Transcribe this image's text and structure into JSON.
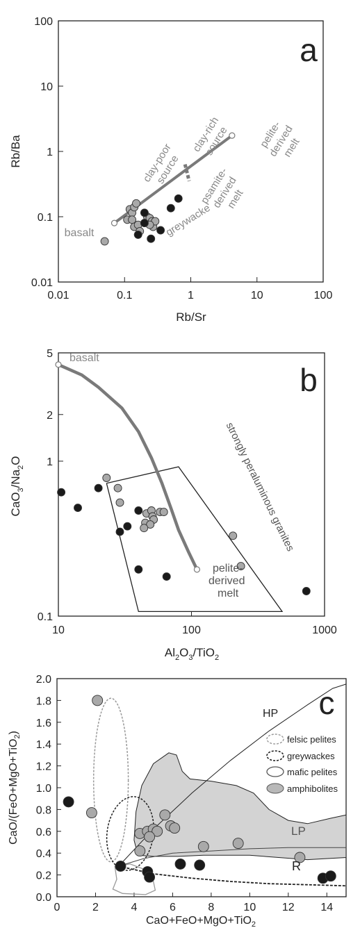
{
  "chart_data": [
    {
      "panel": "a",
      "type": "scatter",
      "xlabel": "Rb/Sr",
      "ylabel": "Rb/Ba",
      "xscale": "log",
      "yscale": "log",
      "xlim": [
        0.01,
        100
      ],
      "ylim": [
        0.01,
        100
      ],
      "xticks": [
        "0.01",
        "0.1",
        "1",
        "10",
        "100"
      ],
      "yticks": [
        "0.01",
        "0.1",
        "1",
        "10",
        "100"
      ],
      "mixing_line": {
        "points": [
          [
            0.07,
            0.08
          ],
          [
            4.2,
            1.75
          ]
        ]
      },
      "divider": {
        "x": 0.88,
        "y": 0.45
      },
      "labels": {
        "basalt": "basalt",
        "clay_poor": [
          "clay-poor",
          "source"
        ],
        "clay_rich": [
          "clay-rich",
          "source"
        ],
        "pelite": [
          "pelite-",
          "derived",
          "melt"
        ],
        "psamite": [
          "psamite-",
          "derived",
          "melt"
        ],
        "greywacke": "greywacke"
      },
      "series": [
        {
          "style": "grey",
          "points": [
            [
              0.05,
              0.042
            ],
            [
              0.11,
              0.09
            ],
            [
              0.12,
              0.13
            ],
            [
              0.13,
              0.115
            ],
            [
              0.14,
              0.14
            ],
            [
              0.15,
              0.16
            ],
            [
              0.13,
              0.09
            ],
            [
              0.14,
              0.07
            ],
            [
              0.16,
              0.075
            ],
            [
              0.17,
              0.06
            ],
            [
              0.2,
              0.08
            ],
            [
              0.22,
              0.1
            ],
            [
              0.24,
              0.095
            ],
            [
              0.26,
              0.085
            ],
            [
              0.27,
              0.07
            ],
            [
              0.29,
              0.085
            ],
            [
              0.24,
              0.075
            ]
          ]
        },
        {
          "style": "black",
          "points": [
            [
              0.16,
              0.053
            ],
            [
              0.2,
              0.115
            ],
            [
              0.2,
              0.08
            ],
            [
              0.25,
              0.046
            ],
            [
              0.35,
              0.062
            ],
            [
              0.5,
              0.135
            ],
            [
              0.65,
              0.19
            ]
          ]
        }
      ]
    },
    {
      "panel": "b",
      "type": "scatter",
      "xlabel": "Al2O3/TiO2",
      "ylabel": "CaO3/Na2O",
      "xscale": "log",
      "yscale": "log",
      "xlim": [
        10,
        1000
      ],
      "ylim": [
        0.1,
        5
      ],
      "xticks": [
        "10",
        "100",
        "1000"
      ],
      "yticks": [
        "0.1",
        "1",
        "2",
        "5"
      ],
      "curve": {
        "points": [
          [
            10,
            4.2
          ],
          [
            15,
            3.6
          ],
          [
            20,
            3.0
          ],
          [
            30,
            2.2
          ],
          [
            40,
            1.55
          ],
          [
            50,
            1.05
          ],
          [
            60,
            0.72
          ],
          [
            70,
            0.5
          ],
          [
            80,
            0.36
          ],
          [
            95,
            0.26
          ],
          [
            110,
            0.2
          ]
        ]
      },
      "field": {
        "points": [
          [
            23,
            0.72
          ],
          [
            80,
            0.92
          ],
          [
            480,
            0.107
          ],
          [
            40,
            0.107
          ],
          [
            23,
            0.72
          ]
        ]
      },
      "labels": {
        "basalt": "basalt",
        "pelite": [
          "pelite-",
          "derived",
          "melt"
        ],
        "spg": "strongly peraluminous granites"
      },
      "series": [
        {
          "style": "grey",
          "points": [
            [
              23,
              0.78
            ],
            [
              28,
              0.67
            ],
            [
              29,
              0.54
            ],
            [
              45,
              0.4
            ],
            [
              46,
              0.46
            ],
            [
              50,
              0.48
            ],
            [
              51,
              0.44
            ],
            [
              52,
              0.42
            ],
            [
              49,
              0.39
            ],
            [
              44,
              0.37
            ],
            [
              58,
              0.47
            ],
            [
              62,
              0.47
            ],
            [
              205,
              0.33
            ],
            [
              235,
              0.21
            ]
          ]
        },
        {
          "style": "black",
          "points": [
            [
              10.5,
              0.63
            ],
            [
              14,
              0.5
            ],
            [
              20,
              0.67
            ],
            [
              29,
              0.35
            ],
            [
              33,
              0.38
            ],
            [
              40,
              0.48
            ],
            [
              40,
              0.2
            ],
            [
              65,
              0.18
            ],
            [
              730,
              0.145
            ]
          ]
        }
      ]
    },
    {
      "panel": "c",
      "type": "scatter",
      "xlabel": "CaO+FeO+MgO+TiO2",
      "ylabel": "CaO/(FeO+MgO+TiO2)",
      "xlim": [
        0,
        15
      ],
      "ylim": [
        0,
        2.0
      ],
      "xticks": [
        "0",
        "2",
        "4",
        "6",
        "8",
        "10",
        "12",
        "14"
      ],
      "yticks": [
        "0.0",
        "0.2",
        "0.4",
        "0.6",
        "0.8",
        "1.0",
        "1.2",
        "1.4",
        "1.6",
        "1.8",
        "2.0"
      ],
      "legend": [
        "felsic pelites",
        "greywackes",
        "mafic pelites",
        "amphibolites"
      ],
      "curve_labels": {
        "hp": "HP",
        "lp": "LP",
        "r": "R"
      },
      "series": [
        {
          "style": "grey",
          "points": [
            [
              2.1,
              1.8
            ],
            [
              1.8,
              0.77
            ],
            [
              4.3,
              0.58
            ],
            [
              4.7,
              0.6
            ],
            [
              5.0,
              0.62
            ],
            [
              5.2,
              0.6
            ],
            [
              5.6,
              0.75
            ],
            [
              5.9,
              0.65
            ],
            [
              6.1,
              0.63
            ],
            [
              4.8,
              0.55
            ],
            [
              4.3,
              0.42
            ],
            [
              7.6,
              0.46
            ],
            [
              9.4,
              0.49
            ],
            [
              12.6,
              0.36
            ]
          ]
        },
        {
          "style": "black",
          "points": [
            [
              0.6,
              0.87
            ],
            [
              3.3,
              0.28
            ],
            [
              4.7,
              0.23
            ],
            [
              4.8,
              0.18
            ],
            [
              6.4,
              0.3
            ],
            [
              7.4,
              0.29
            ],
            [
              13.8,
              0.17
            ],
            [
              14.2,
              0.19
            ]
          ]
        }
      ]
    }
  ],
  "panel_letters": [
    "a",
    "b",
    "c"
  ],
  "colors": {
    "grey_point": "#a9a9a9",
    "black_point": "#1a1a1a",
    "line": "#7a7a7a",
    "field": "#d3d3d3"
  }
}
